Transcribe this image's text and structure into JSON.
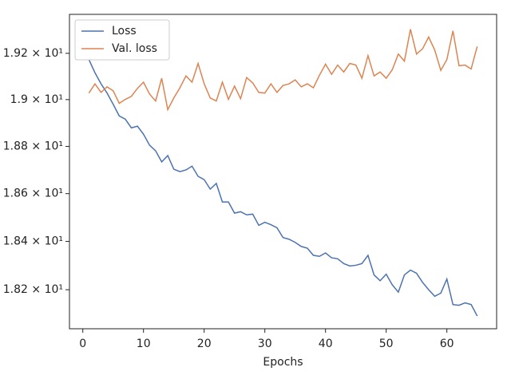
{
  "chart_data": {
    "type": "line",
    "x_label": "Epochs",
    "y_scale": "log",
    "legend": "upper left",
    "x": [
      1,
      2,
      3,
      4,
      5,
      6,
      7,
      8,
      9,
      10,
      11,
      12,
      13,
      14,
      15,
      16,
      17,
      18,
      19,
      20,
      21,
      22,
      23,
      24,
      25,
      26,
      27,
      28,
      29,
      30,
      31,
      32,
      33,
      34,
      35,
      36,
      37,
      38,
      39,
      40,
      41,
      42,
      43,
      44,
      45,
      46,
      47,
      48,
      49,
      50,
      51,
      52,
      53,
      54,
      55,
      56,
      57,
      58,
      59,
      60,
      61,
      62,
      63,
      64,
      65
    ],
    "series": [
      {
        "name": "Loss",
        "color": "#4c72b0",
        "values": [
          19.173,
          19.116,
          19.068,
          19.028,
          18.98,
          18.93,
          18.916,
          18.879,
          18.886,
          18.852,
          18.805,
          18.781,
          18.734,
          18.761,
          18.703,
          18.693,
          18.7,
          18.716,
          18.673,
          18.659,
          18.619,
          18.643,
          18.565,
          18.565,
          18.518,
          18.524,
          18.511,
          18.514,
          18.467,
          18.48,
          18.47,
          18.457,
          18.416,
          18.409,
          18.396,
          18.379,
          18.372,
          18.342,
          18.338,
          18.352,
          18.332,
          18.328,
          18.308,
          18.298,
          18.301,
          18.308,
          18.342,
          18.261,
          18.237,
          18.264,
          18.22,
          18.19,
          18.261,
          18.281,
          18.268,
          18.23,
          18.2,
          18.173,
          18.186,
          18.244,
          18.139,
          18.136,
          18.146,
          18.139,
          18.092
        ]
      },
      {
        "name": "Val. loss",
        "color": "#dd8452",
        "values": [
          19.028,
          19.068,
          19.031,
          19.055,
          19.038,
          18.984,
          19.001,
          19.014,
          19.048,
          19.075,
          19.024,
          18.994,
          19.092,
          18.957,
          19.007,
          19.051,
          19.102,
          19.075,
          19.156,
          19.068,
          19.007,
          18.994,
          19.075,
          19.001,
          19.058,
          19.004,
          19.095,
          19.072,
          19.031,
          19.028,
          19.068,
          19.031,
          19.061,
          19.068,
          19.085,
          19.055,
          19.068,
          19.051,
          19.105,
          19.153,
          19.109,
          19.149,
          19.119,
          19.156,
          19.149,
          19.092,
          19.19,
          19.102,
          19.119,
          19.092,
          19.129,
          19.197,
          19.166,
          19.305,
          19.197,
          19.22,
          19.271,
          19.214,
          19.126,
          19.173,
          19.298,
          19.146,
          19.149,
          19.132,
          19.23
        ]
      }
    ],
    "xlim": [
      -2.2,
      68.2
    ],
    "xticks": [
      0,
      10,
      20,
      30,
      40,
      50,
      60
    ],
    "ylim": [
      18.04,
      19.37
    ],
    "yticks": [
      {
        "value": 18.2,
        "label": "1.82 × 10¹"
      },
      {
        "value": 18.4,
        "label": "1.84 × 10¹"
      },
      {
        "value": 18.6,
        "label": "1.86 × 10¹"
      },
      {
        "value": 18.8,
        "label": "1.88 × 10¹"
      },
      {
        "value": 19.0,
        "label": "1.9 × 10¹"
      },
      {
        "value": 19.2,
        "label": "1.92 × 10¹"
      }
    ]
  }
}
